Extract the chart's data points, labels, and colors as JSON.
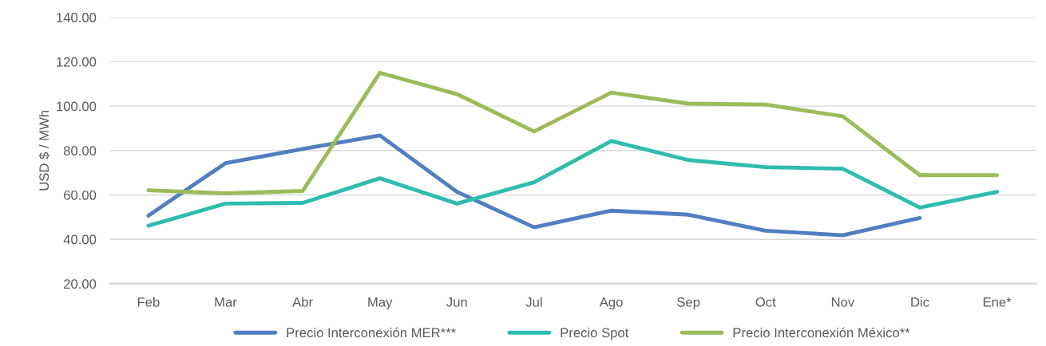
{
  "chart_data": {
    "type": "line",
    "ylabel": "USD $ / MWh",
    "categories": [
      "Feb",
      "Mar",
      "Abr",
      "May",
      "Jun",
      "Jul",
      "Ago",
      "Sep",
      "Oct",
      "Nov",
      "Dic",
      "Ene*"
    ],
    "series": [
      {
        "name": "Precio Interconexión MER***",
        "color": "#4f7fc0",
        "values": [
          50.7,
          74.3,
          80.7,
          86.8,
          61.4,
          45.4,
          52.9,
          51.1,
          43.9,
          41.8,
          49.6,
          null
        ]
      },
      {
        "name": "Precio Spot",
        "color": "#2fbcae",
        "values": [
          46.1,
          56.1,
          56.4,
          67.5,
          56.1,
          65.7,
          84.3,
          75.7,
          72.5,
          71.8,
          54.3,
          61.4
        ]
      },
      {
        "name": "Precio Interconexión México**",
        "color": "#9bbb59",
        "values": [
          62.1,
          60.7,
          61.8,
          115.0,
          105.4,
          88.6,
          106.1,
          101.1,
          100.7,
          95.4,
          68.9,
          68.9
        ]
      }
    ],
    "ylim": [
      20,
      140
    ],
    "yticks": [
      {
        "value": 20,
        "label": "20.00"
      },
      {
        "value": 40,
        "label": "40.00"
      },
      {
        "value": 60,
        "label": "60.00"
      },
      {
        "value": 80,
        "label": "80.00"
      },
      {
        "value": 100,
        "label": "100.00"
      },
      {
        "value": 120,
        "label": "120.00"
      },
      {
        "value": 140,
        "label": "140.00"
      }
    ],
    "grid": "y",
    "legend": "bottom",
    "marker": "none",
    "line_style": "solid"
  }
}
